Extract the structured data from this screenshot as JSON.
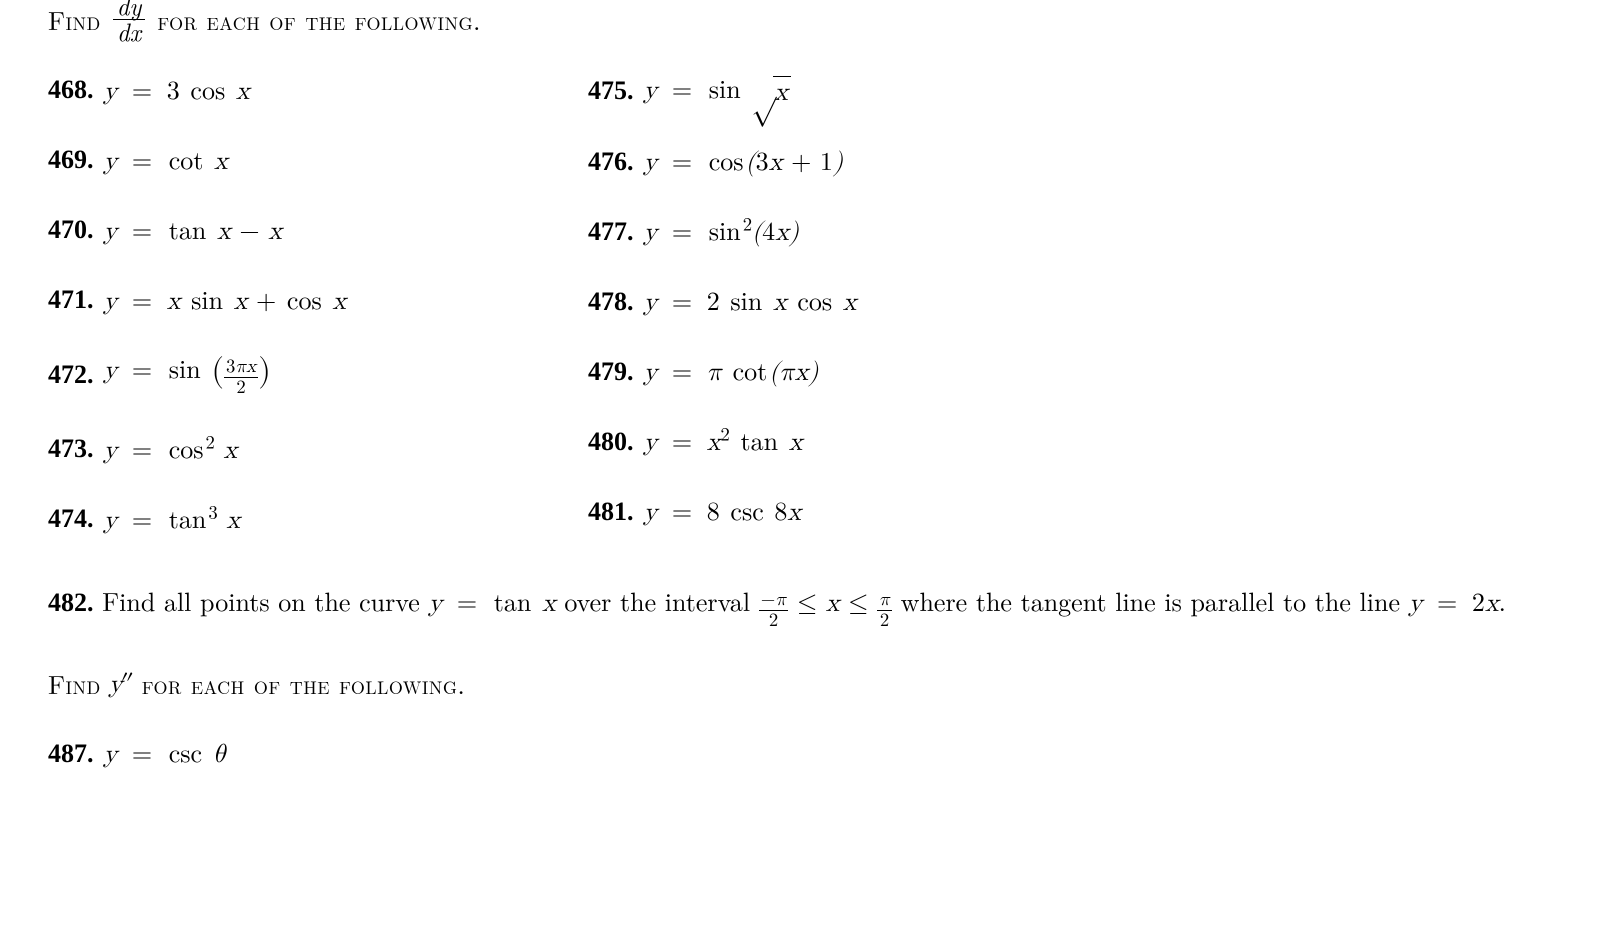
{
  "heading1_pre": "Find ",
  "heading1_frac_num": "dy",
  "heading1_frac_den": "dx",
  "heading1_post": " for each of the following.",
  "left": [
    {
      "n": "468.",
      "html": "<span class='math'>y <span class='eq'>=</span> <span class='rm'>3</span> <span class='op'>cos</span> x</span>"
    },
    {
      "n": "469.",
      "html": "<span class='math'>y <span class='eq'>=</span> <span class='op'>cot</span> x</span>"
    },
    {
      "n": "470.",
      "html": "<span class='math'>y <span class='eq'>=</span> <span class='op'>tan</span> x <span class='rm'> − </span> x</span>"
    },
    {
      "n": "471.",
      "html": "<span class='math'>y <span class='eq'>=</span> x <span class='op'>sin</span> x <span class='rm'> + </span> <span class='op'>cos</span> x</span>"
    },
    {
      "n": "472.",
      "html": "<span class='math'>y <span class='eq'>=</span> <span class='op'>sin</span> <span class='bigparen'>(</span><span class='sfrac'><span class='num'><span class='rm'>3</span>πx</span><span class='den'><span class='rm'>2</span></span></span><span class='bigparen'>)</span></span>"
    },
    {
      "n": "473.",
      "html": "<span class='math'>y <span class='eq'>=</span> <span class='op'>cos</span><sup><span class='rm'>2</span></sup> x</span>"
    },
    {
      "n": "474.",
      "html": "<span class='math'>y <span class='eq'>=</span> <span class='op'>tan</span><sup><span class='rm'>3</span></sup> x</span>"
    }
  ],
  "right": [
    {
      "n": "475.",
      "html": "<span class='math'>y <span class='eq'>=</span> <span class='op'>sin</span> <span class='sqrt'><span class='surd'>√</span><span class='radicand'>x</span></span></span>"
    },
    {
      "n": "476.",
      "html": "<span class='math'>y <span class='eq'>=</span> <span class='op'>cos</span>(<span class='rm'>3</span>x <span class='rm'>+ 1</span>)</span>"
    },
    {
      "n": "477.",
      "html": "<span class='math'>y <span class='eq'>=</span> <span class='op'>sin</span><sup><span class='rm'>2</span></sup>(<span class='rm'>4</span>x)</span>"
    },
    {
      "n": "478.",
      "html": "<span class='math'>y <span class='eq'>=</span> <span class='rm'>2</span> <span class='op'>sin</span> x <span class='op'>cos</span> x</span>"
    },
    {
      "n": "479.",
      "html": "<span class='math'>y <span class='eq'>=</span> π <span class='op'>cot</span>(πx)</span>"
    },
    {
      "n": "480.",
      "html": "<span class='math'>y <span class='eq'>=</span> x<sup><span class='rm'>2</span></sup> <span class='op'>tan</span> x</span>"
    },
    {
      "n": "481.",
      "html": "<span class='math'>y <span class='eq'>=</span> <span class='rm'>8</span> <span class='op'>csc</span> <span class='rm'>8</span>x</span>"
    }
  ],
  "p482_n": "482.",
  "p482_html": "Find all points on the curve <span class='math'>y <span class='eq'>=</span> <span class='op'>tan</span> x</span> over the interval <span class='math'><span class='sfrac'><span class='num'><span class='rm'>−</span>π</span><span class='den'><span class='rm'>2</span></span></span> <span class='rm'>≤</span> x <span class='rm'>≤</span> <span class='sfrac'><span class='num'>π</span><span class='den'><span class='rm'>2</span></span></span></span> where the tangent line is parallel to the line <span class='math'>y <span class='eq'>=</span> <span class='rm'>2</span>x</span>.",
  "heading2_pre": "Find ",
  "heading2_mid_html": "<span class='math'>y<span class='prime'>″</span></span>",
  "heading2_post": " for each of the following.",
  "p487_n": "487.",
  "p487_html": "<span class='math'>y <span class='eq'>=</span> <span class='op'>csc</span> θ</span>"
}
